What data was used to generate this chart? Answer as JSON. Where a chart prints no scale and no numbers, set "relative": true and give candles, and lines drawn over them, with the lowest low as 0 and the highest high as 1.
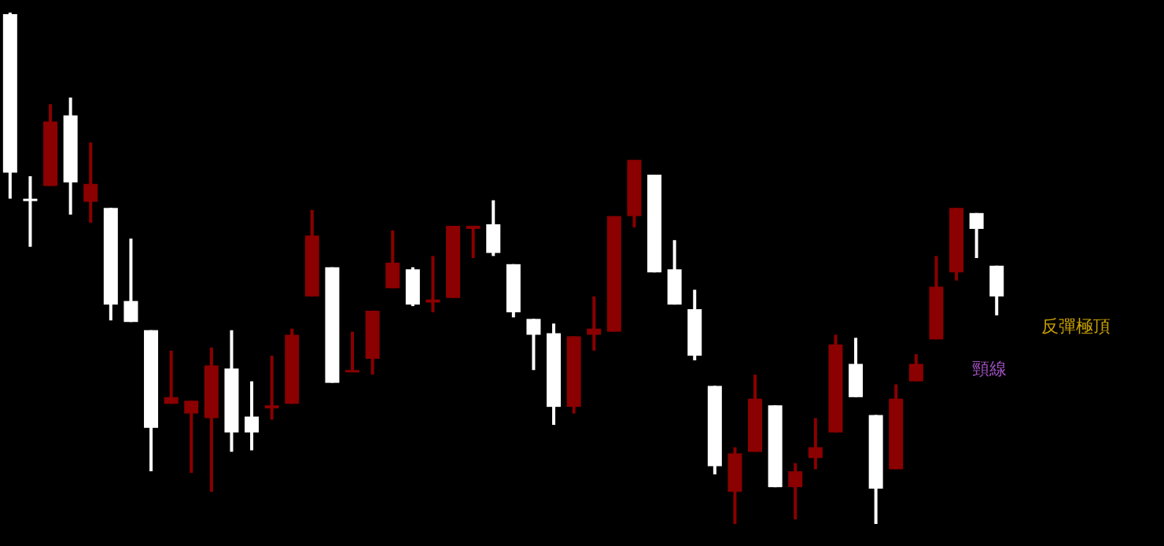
{
  "chart_data": {
    "type": "candlestick",
    "relative": true,
    "categories": [
      null,
      null,
      null,
      null,
      null,
      null,
      null,
      null,
      null,
      null,
      null,
      null,
      null,
      null,
      null,
      null,
      null,
      null,
      null,
      null,
      null,
      null,
      null,
      null,
      null,
      null,
      null,
      null,
      null,
      null,
      null,
      null,
      null,
      null,
      null,
      null,
      null,
      null,
      null,
      null,
      null,
      null,
      null,
      null,
      null,
      null,
      null,
      null,
      null,
      null
    ],
    "ohlc": [
      [
        0.997,
        1,
        0.636,
        0.687
      ],
      [
        0.636,
        0.68,
        0.542,
        0.633
      ],
      [
        0.661,
        0.821,
        0.661,
        0.787
      ],
      [
        0.799,
        0.834,
        0.605,
        0.668
      ],
      [
        0.63,
        0.746,
        0.589,
        0.665
      ],
      [
        0.618,
        0.618,
        0.398,
        0.429
      ],
      [
        0.436,
        0.558,
        0.395,
        0.395
      ],
      [
        0.379,
        0.379,
        0.103,
        0.188
      ],
      [
        0.235,
        0.339,
        0.235,
        0.248
      ],
      [
        0.216,
        0.241,
        0.1,
        0.241
      ],
      [
        0.207,
        0.345,
        0.063,
        0.31
      ],
      [
        0.304,
        0.379,
        0.141,
        0.179
      ],
      [
        0.21,
        0.279,
        0.144,
        0.179
      ],
      [
        0.226,
        0.329,
        0.204,
        0.232
      ],
      [
        0.235,
        0.382,
        0.235,
        0.37
      ],
      [
        0.445,
        0.614,
        0.445,
        0.564
      ],
      [
        0.502,
        0.502,
        0.276,
        0.276
      ],
      [
        0.298,
        0.376,
        0.298,
        0.301
      ],
      [
        0.323,
        0.417,
        0.292,
        0.417
      ],
      [
        0.461,
        0.574,
        0.461,
        0.511
      ],
      [
        0.498,
        0.502,
        0.426,
        0.429
      ],
      [
        0.433,
        0.524,
        0.414,
        0.439
      ],
      [
        0.442,
        0.583,
        0.442,
        0.583
      ],
      [
        0.577,
        0.583,
        0.52,
        0.583
      ],
      [
        0.586,
        0.633,
        0.524,
        0.53
      ],
      [
        0.508,
        0.508,
        0.404,
        0.414
      ],
      [
        0.401,
        0.401,
        0.301,
        0.37
      ],
      [
        0.373,
        0.392,
        0.194,
        0.229
      ],
      [
        0.229,
        0.367,
        0.216,
        0.367
      ],
      [
        0.37,
        0.445,
        0.339,
        0.382
      ],
      [
        0.376,
        0.602,
        0.376,
        0.602
      ],
      [
        0.602,
        0.712,
        0.58,
        0.712
      ],
      [
        0.683,
        0.683,
        0.492,
        0.492
      ],
      [
        0.498,
        0.555,
        0.429,
        0.429
      ],
      [
        0.42,
        0.458,
        0.32,
        0.329
      ],
      [
        0.27,
        0.27,
        0.097,
        0.113
      ],
      [
        0.063,
        0.15,
        0,
        0.138
      ],
      [
        0.141,
        0.292,
        0.141,
        0.245
      ],
      [
        0.232,
        0.232,
        0.072,
        0.072
      ],
      [
        0.072,
        0.119,
        0.009,
        0.103
      ],
      [
        0.129,
        0.207,
        0.107,
        0.15
      ],
      [
        0.179,
        0.37,
        0.179,
        0.351
      ],
      [
        0.313,
        0.364,
        0.248,
        0.248
      ],
      [
        0.213,
        0.213,
        0,
        0.069
      ],
      [
        0.107,
        0.273,
        0.107,
        0.245
      ],
      [
        0.279,
        0.332,
        0.279,
        0.313
      ],
      [
        0.361,
        0.524,
        0.361,
        0.464
      ],
      [
        0.492,
        0.618,
        0.476,
        0.618
      ],
      [
        0.608,
        0.608,
        0.52,
        0.577
      ],
      [
        0.505,
        0.505,
        0.408,
        0.445
      ]
    ],
    "colors": [
      "#ffffff",
      "#ffffff",
      "#8b0000",
      "#ffffff",
      "#8b0000",
      "#ffffff",
      "#ffffff",
      "#ffffff",
      "#8b0000",
      "#8b0000",
      "#8b0000",
      "#ffffff",
      "#ffffff",
      "#8b0000",
      "#8b0000",
      "#8b0000",
      "#ffffff",
      "#8b0000",
      "#8b0000",
      "#8b0000",
      "#ffffff",
      "#8b0000",
      "#8b0000",
      "#8b0000",
      "#ffffff",
      "#ffffff",
      "#ffffff",
      "#ffffff",
      "#8b0000",
      "#8b0000",
      "#8b0000",
      "#8b0000",
      "#ffffff",
      "#ffffff",
      "#ffffff",
      "#ffffff",
      "#8b0000",
      "#8b0000",
      "#ffffff",
      "#8b0000",
      "#8b0000",
      "#8b0000",
      "#ffffff",
      "#ffffff",
      "#8b0000",
      "#8b0000",
      "#8b0000",
      "#8b0000",
      "#ffffff",
      "#ffffff"
    ],
    "annotations": [
      "反彈極頂",
      "頸線"
    ]
  }
}
